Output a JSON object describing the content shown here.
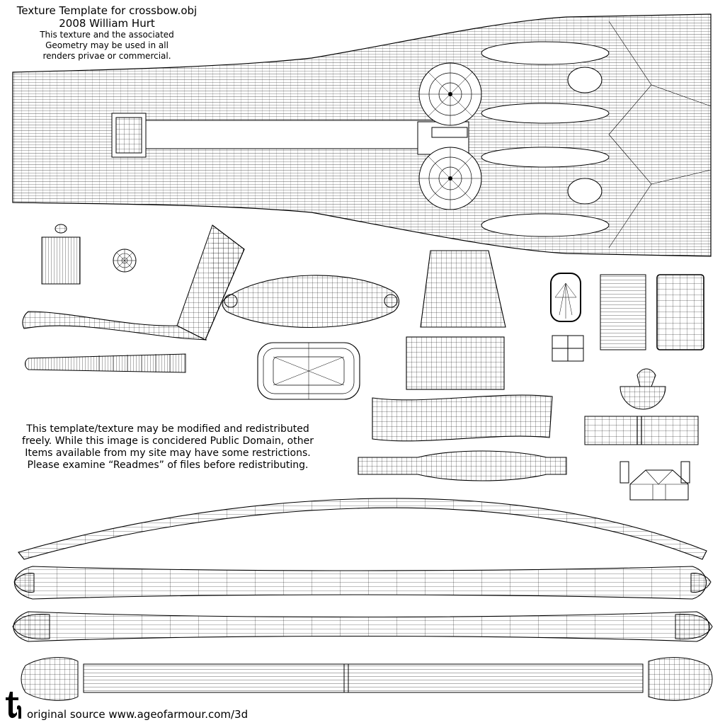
{
  "header": {
    "title": "Texture Template for crossbow.obj",
    "credit": "2008 William Hurt",
    "license_line1": "This texture and the associated",
    "license_line2": "Geometry may be used in all",
    "license_line3": "renders privae or commercial."
  },
  "notice": {
    "line1": "This template/texture may be modified and redistributed",
    "line2": "freely. While this image is concidered Public Domain, other",
    "line3": "Items available from my site may have some restrictions.",
    "line4": "Please examine “Readmes” of files before redistributing."
  },
  "footer": {
    "source": "original source www.ageofarmour.com/3d"
  },
  "colors": {
    "background": "#ffffff",
    "wireframe": "#000000"
  },
  "icons": [
    "maker-logo-icon"
  ]
}
